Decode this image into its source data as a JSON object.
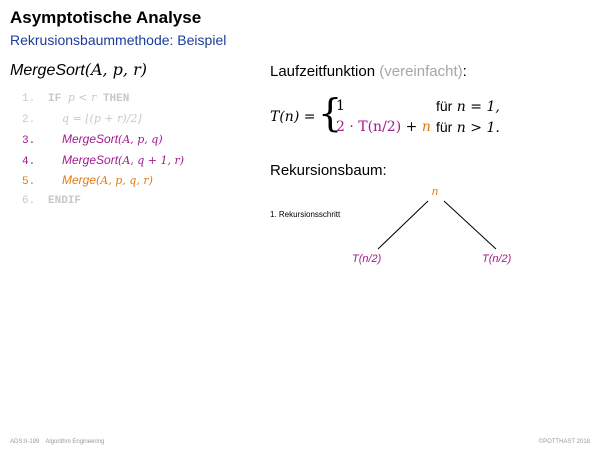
{
  "slide": {
    "title": "Asymptotische Analyse",
    "subtitle": "Rekrusionsbaummethode: Beispiel"
  },
  "algorithm": {
    "name": "MergeSort",
    "params": "(A, p, r)",
    "lines": [
      {
        "num": "1.",
        "pre": "IF",
        "math": "p < r",
        "post": "THEN",
        "color": "gray"
      },
      {
        "num": "2.",
        "indent": true,
        "math": "q = ⌊(p + r)/2⌋",
        "color": "gray"
      },
      {
        "num": "3.",
        "indent": true,
        "fn": "MergeSort",
        "math": "(A, p, q)",
        "color": "purple"
      },
      {
        "num": "4.",
        "indent": true,
        "fn": "MergeSort",
        "math": "(A, q + 1, r)",
        "color": "purple"
      },
      {
        "num": "5.",
        "indent": true,
        "fn": "Merge",
        "math": "(A, p, q, r)",
        "color": "orange"
      },
      {
        "num": "6.",
        "pre": "ENDIF",
        "color": "gray"
      }
    ]
  },
  "runtime": {
    "heading": "Laufzeitfunktion",
    "heading_note": "(vereinfacht)",
    "heading_colon": ":",
    "lhs": "T(n) =",
    "case1_value": "1",
    "case1_cond_word": "für",
    "case1_cond_math": "n = 1,",
    "case2_value_purple": "2 · T(n/2)",
    "case2_value_plus": " + ",
    "case2_value_orange": "n",
    "case2_cond_word": "für",
    "case2_cond_math": "n > 1."
  },
  "tree": {
    "heading": "Rekursionsbaum:",
    "step_label": "1. Rekursionsschritt",
    "root": "n",
    "left_child": "T(n/2)",
    "right_child": "T(n/2)"
  },
  "footer": {
    "page": "ADS:II-199",
    "course": "Algorithm Engineering",
    "copyright": "©POTTHAST 2018"
  },
  "colors": {
    "subtitle": "#1a3c9c",
    "purple": "#a01a8c",
    "orange": "#e07a0e",
    "gray": "#c8c8c8"
  }
}
